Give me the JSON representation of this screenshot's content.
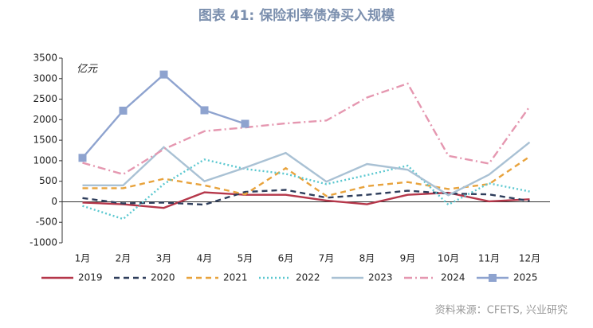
{
  "chart_data": {
    "type": "line",
    "title": "图表 41: 保险利率债净买入规模",
    "y_label": "亿元",
    "source": "资料来源：CFETS, 兴业研究",
    "categories": [
      "1月",
      "2月",
      "3月",
      "4月",
      "5月",
      "6月",
      "7月",
      "8月",
      "9月",
      "10月",
      "11月",
      "12月"
    ],
    "ylim": [
      -1000,
      3500
    ],
    "yticks": [
      -1000,
      -500,
      0,
      500,
      1000,
      1500,
      2000,
      2500,
      3000,
      3500
    ],
    "grid": false,
    "legend": "bottom",
    "series": [
      {
        "name": "2019",
        "color": "#b5374a",
        "style": "solid",
        "values": [
          -20,
          -60,
          -150,
          230,
          170,
          170,
          30,
          -60,
          170,
          220,
          10,
          60
        ]
      },
      {
        "name": "2020",
        "color": "#2f3e5c",
        "style": "dashed",
        "values": [
          90,
          -40,
          -20,
          -70,
          240,
          290,
          100,
          170,
          270,
          200,
          180,
          20
        ]
      },
      {
        "name": "2021",
        "color": "#e8a33d",
        "style": "dashed",
        "values": [
          330,
          330,
          560,
          400,
          180,
          820,
          140,
          380,
          480,
          310,
          430,
          1100
        ]
      },
      {
        "name": "2022",
        "color": "#5bc8d0",
        "style": "dotted",
        "values": [
          -100,
          -420,
          430,
          1030,
          800,
          680,
          430,
          650,
          880,
          -70,
          450,
          250
        ]
      },
      {
        "name": "2023",
        "color": "#a9c1d4",
        "style": "solid",
        "values": [
          400,
          400,
          1330,
          500,
          830,
          1190,
          490,
          920,
          780,
          160,
          660,
          1450
        ]
      },
      {
        "name": "2024",
        "color": "#e597b0",
        "style": "dashdot",
        "values": [
          950,
          670,
          1280,
          1720,
          1810,
          1910,
          1980,
          2540,
          2880,
          1120,
          930,
          2320
        ]
      },
      {
        "name": "2025",
        "color": "#8ea3cf",
        "style": "solid",
        "marker": "square",
        "values": [
          1070,
          2220,
          3100,
          2230,
          1900,
          null,
          null,
          null,
          null,
          null,
          null,
          null
        ]
      }
    ]
  }
}
